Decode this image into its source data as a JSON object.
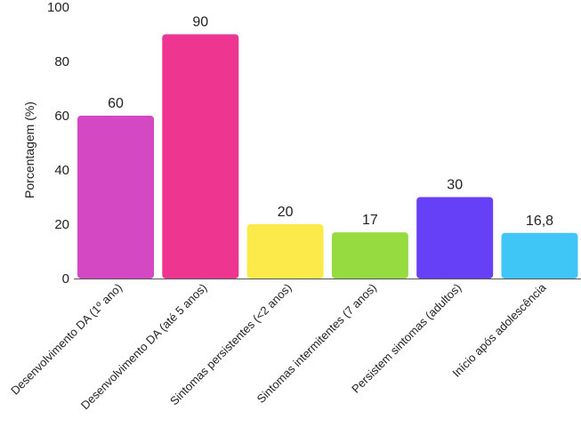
{
  "chart_data": {
    "type": "bar",
    "title": "",
    "xlabel": "",
    "ylabel": "Porcentagem (%)",
    "ylim": [
      0,
      100
    ],
    "yticks": [
      0,
      20,
      40,
      60,
      80,
      100
    ],
    "grid": false,
    "categories": [
      "Desenvolvimento DA (1º ano)",
      "Desenvolvimento DA (até 5 anos)",
      "Sintomas persistentes (<2 anos)",
      "Sintomas intermitentes (7 anos)",
      "Persistem sintomas (adultos)",
      "Início após adolescência"
    ],
    "values": [
      60,
      90,
      20,
      17,
      30,
      16.8
    ],
    "value_labels": [
      "60",
      "90",
      "20",
      "17",
      "30",
      "16,8"
    ],
    "colors": [
      "#d448c4",
      "#ee3590",
      "#fce94a",
      "#96dc40",
      "#6640f6",
      "#40c6f6"
    ]
  }
}
